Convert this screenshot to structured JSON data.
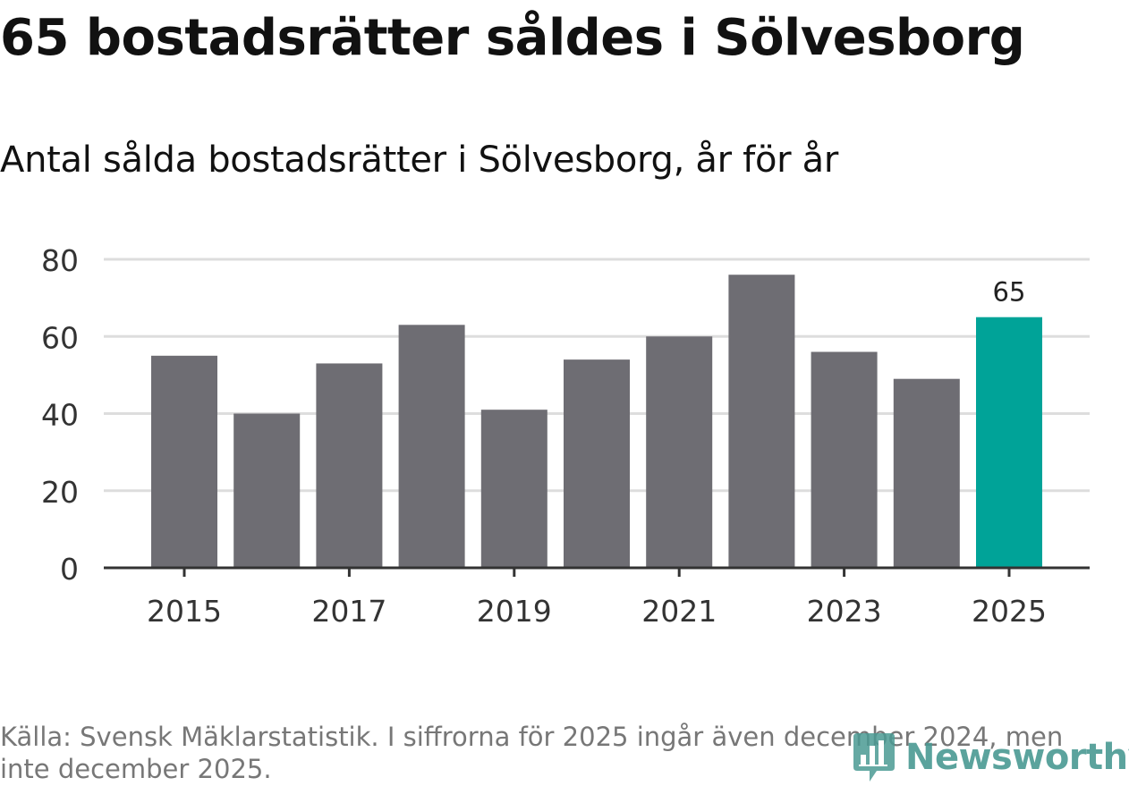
{
  "header": {
    "title": "65 bostadsrätter såldes i Sölvesborg",
    "subtitle": "Antal sålda bostadsrätter i Sölvesborg, år för år"
  },
  "footer": {
    "source": "Källa: Svensk Mäklarstatistik. I siffrorna för 2025 ingår även december 2024, men inte december 2025.",
    "brand": "Newsworthy",
    "brand_icon": "newsworthy-logo-icon"
  },
  "colors": {
    "bar": "#6e6d73",
    "highlight": "#00a398",
    "grid": "#dddddd",
    "axis": "#333333",
    "brand": "#4a9a93"
  },
  "chart_data": {
    "type": "bar",
    "title": "65 bostadsrätter såldes i Sölvesborg",
    "subtitle": "Antal sålda bostadsrätter i Sölvesborg, år för år",
    "categories": [
      "2015",
      "2016",
      "2017",
      "2018",
      "2019",
      "2020",
      "2021",
      "2022",
      "2023",
      "2024",
      "2025"
    ],
    "values": [
      55,
      40,
      53,
      63,
      41,
      54,
      60,
      76,
      56,
      49,
      65
    ],
    "x_tick_labels": [
      "2015",
      "2017",
      "2019",
      "2021",
      "2023",
      "2025"
    ],
    "y_ticks": [
      0,
      20,
      40,
      60,
      80
    ],
    "ylim": [
      0,
      80
    ],
    "xlabel": "",
    "ylabel": "",
    "grid": true,
    "highlight_category": "2025",
    "data_labels": [
      {
        "category": "2025",
        "label": "65"
      }
    ]
  }
}
